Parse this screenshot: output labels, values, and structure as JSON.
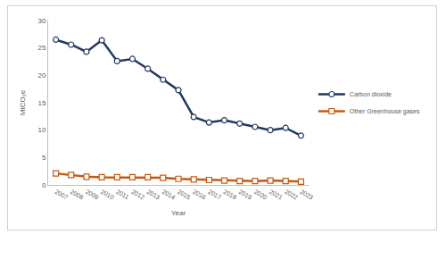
{
  "chart_data": {
    "type": "line",
    "x_label": "Year",
    "y_label": "MtCO₂e",
    "categories": [
      "2007",
      "2008",
      "2009",
      "2010",
      "2011",
      "2012",
      "2013",
      "2014",
      "2015",
      "2016",
      "2017",
      "2018",
      "2019",
      "2020",
      "2021",
      "2022",
      "2023"
    ],
    "series": [
      {
        "name": "Carbon dioxide",
        "color": "#203864",
        "marker": "circle",
        "line_style": "solid",
        "values": [
          26.5,
          25.6,
          24.3,
          26.4,
          22.6,
          23.0,
          21.2,
          19.2,
          17.3,
          12.4,
          11.4,
          11.8,
          11.2,
          10.6,
          10.0,
          10.4,
          9.0
        ]
      },
      {
        "name": "Other Greenhouse gases",
        "color": "#C55A11",
        "marker": "square",
        "line_style": "solid",
        "values": [
          2.1,
          1.8,
          1.5,
          1.4,
          1.4,
          1.4,
          1.4,
          1.3,
          1.1,
          1.0,
          0.9,
          0.8,
          0.7,
          0.7,
          0.8,
          0.7,
          0.6
        ]
      }
    ],
    "ylim": [
      0,
      30
    ],
    "yticks": [
      0,
      5,
      10,
      15,
      20,
      25,
      30
    ],
    "grid": false,
    "legend": "right"
  }
}
